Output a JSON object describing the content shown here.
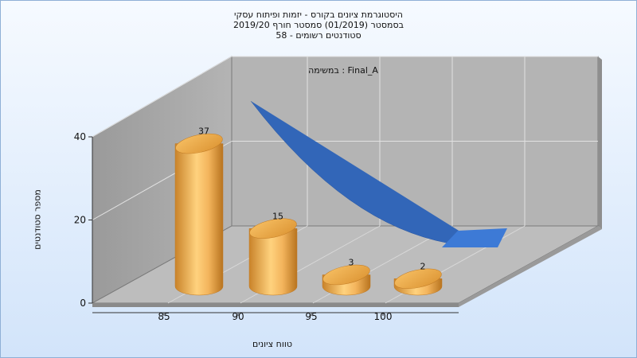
{
  "chart_title": {
    "line1": "היסטוגרמת ציונים בקורס - יזמות ופיתוח עסקי",
    "line2": "בסמסטר  (01/2019)  סמסטר חורף 2019/20",
    "line3": "סטודנטים רשומים - 58"
  },
  "chart_data": {
    "type": "bar",
    "title": "היסטוגרמת ציונים בקורס - יזמות ופיתוח עסקי",
    "xlabel": "טווח ציונים",
    "ylabel": "מספר סטודנטים",
    "x": [
      85,
      90,
      95,
      100
    ],
    "x_ticks": [
      85,
      90,
      95,
      100
    ],
    "values": [
      37,
      15,
      3,
      2
    ],
    "ylim": [
      0,
      40
    ],
    "y_ticks": [
      0,
      20,
      40
    ],
    "annotation": "במשימה : Final_A",
    "bar_color": "#e8a845",
    "curve_color": "#3266b8",
    "grid": true
  }
}
